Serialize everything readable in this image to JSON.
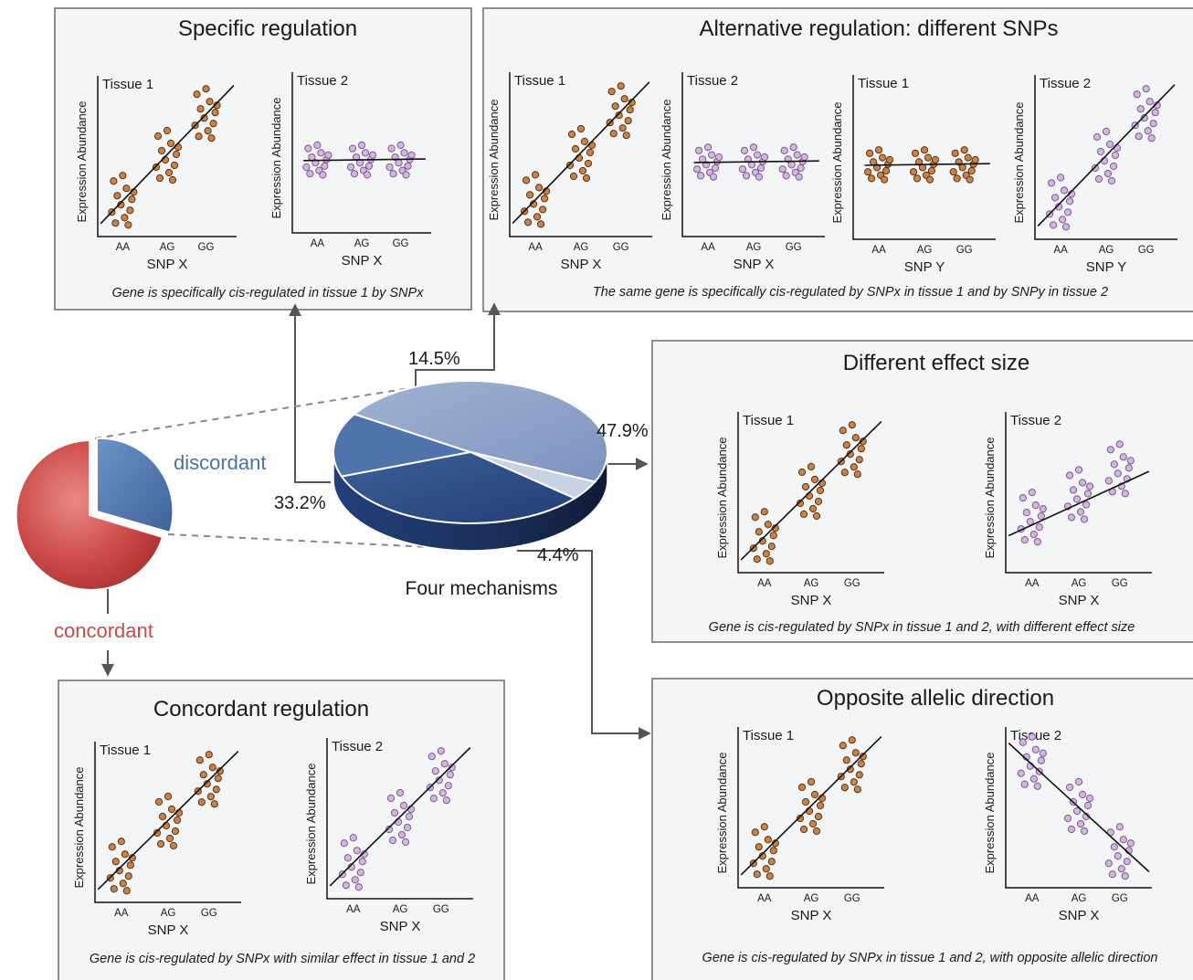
{
  "colors": {
    "tissue1_dot": "#c8834a",
    "tissue1_dot_stroke": "#5a3410",
    "tissue2_dot": "#d2b6e0",
    "tissue2_dot_stroke": "#7b5b8e",
    "discordant": "#4a72a8",
    "concordant": "#c84a4a",
    "slice_specific": "#4e74ab",
    "slice_concordant_like": "#2f4f86",
    "slice_effect": "#8ea3c8",
    "slice_opposite": "#c9d2e3"
  },
  "axis_common": {
    "ylabel": "Expression Abundance",
    "ticks": [
      "AA",
      "AG",
      "GG"
    ]
  },
  "panels": [
    {
      "id": "specific",
      "title": "Specific regulation",
      "caption": "Gene is specifically cis-regulated in tissue 1 by SNPx",
      "plots": [
        {
          "tissue": "Tissue 1",
          "snp": "SNP X",
          "pattern": "up",
          "color": "t1"
        },
        {
          "tissue": "Tissue 2",
          "snp": "SNP X",
          "pattern": "flat",
          "color": "t2"
        }
      ]
    },
    {
      "id": "alternative",
      "title": "Alternative  regulation: different SNPs",
      "caption": "The same gene is specifically cis-regulated by SNPx in tissue 1 and by SNPy in tissue 2",
      "plots": [
        {
          "tissue": "Tissue 1",
          "snp": "SNP X",
          "pattern": "up",
          "color": "t1"
        },
        {
          "tissue": "Tissue 2",
          "snp": "SNP X",
          "pattern": "flat",
          "color": "t2"
        },
        {
          "tissue": "Tissue 1",
          "snp": "SNP Y",
          "pattern": "flat",
          "color": "t1"
        },
        {
          "tissue": "Tissue 2",
          "snp": "SNP Y",
          "pattern": "up",
          "color": "t2"
        }
      ]
    },
    {
      "id": "effect",
      "title": "Different effect size",
      "caption": "Gene is cis-regulated by SNPx in tissue 1 and 2, with different effect size",
      "plots": [
        {
          "tissue": "Tissue 1",
          "snp": "SNP X",
          "pattern": "up",
          "color": "t1"
        },
        {
          "tissue": "Tissue 2",
          "snp": "SNP X",
          "pattern": "mild",
          "color": "t2"
        }
      ]
    },
    {
      "id": "opposite",
      "title": "Opposite allelic direction",
      "caption": "Gene is cis-regulated by SNPx in tissue 1 and 2, with opposite allelic direction",
      "plots": [
        {
          "tissue": "Tissue 1",
          "snp": "SNP X",
          "pattern": "up",
          "color": "t1"
        },
        {
          "tissue": "Tissue 2",
          "snp": "SNP X",
          "pattern": "down",
          "color": "t2"
        }
      ]
    },
    {
      "id": "concordant",
      "title": "Concordant regulation",
      "caption": "Gene is cis-regulated by SNPx with similar effect in tissue 1 and 2",
      "plots": [
        {
          "tissue": "Tissue 1",
          "snp": "SNP X",
          "pattern": "up",
          "color": "t1"
        },
        {
          "tissue": "Tissue 2",
          "snp": "SNP X",
          "pattern": "up",
          "color": "t2"
        }
      ]
    }
  ],
  "small_pie": {
    "discordant_label": "discordant",
    "concordant_label": "concordant"
  },
  "big_pie": {
    "label": "Four mechanisms",
    "slices": [
      {
        "name": "specific",
        "percent": 33.2,
        "label": "33.2%"
      },
      {
        "name": "alternative",
        "percent": 14.5,
        "label": "14.5%"
      },
      {
        "name": "effect",
        "percent": 47.9,
        "label": "47.9%"
      },
      {
        "name": "opposite",
        "percent": 4.4,
        "label": "4.4%"
      }
    ]
  }
}
